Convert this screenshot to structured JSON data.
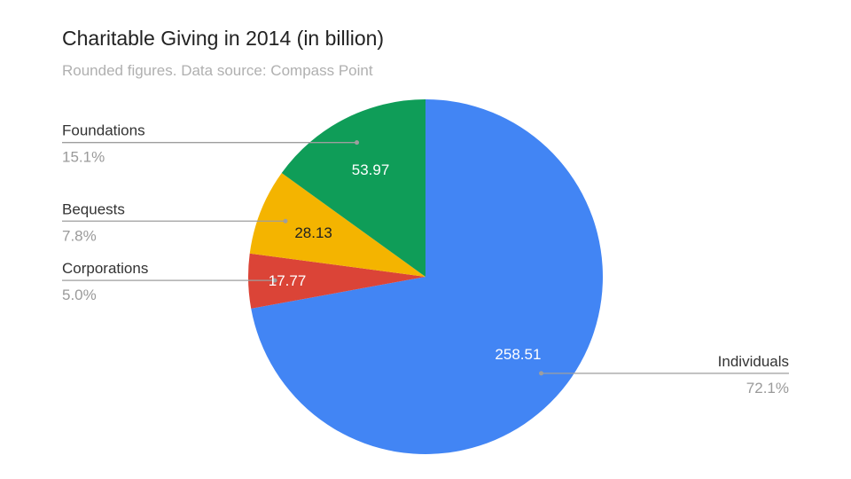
{
  "title": "Charitable Giving in 2014 (in billion)",
  "subtitle": "Rounded figures. Data source: Compass Point",
  "chart_data": {
    "type": "pie",
    "title": "Charitable Giving in 2014 (in billion)",
    "subtitle": "Rounded figures. Data source: Compass Point",
    "slices": [
      {
        "label": "Individuals",
        "value": 258.51,
        "value_label": "258.51",
        "percent_label": "72.1%",
        "color": "#4285F4",
        "label_color": "#ffffff"
      },
      {
        "label": "Corporations",
        "value": 17.77,
        "value_label": "17.77",
        "percent_label": "5.0%",
        "color": "#DB4437",
        "label_color": "#ffffff"
      },
      {
        "label": "Bequests",
        "value": 28.13,
        "value_label": "28.13",
        "percent_label": "7.8%",
        "color": "#F4B400",
        "label_color": "#222222"
      },
      {
        "label": "Foundations",
        "value": 53.97,
        "value_label": "53.97",
        "percent_label": "15.1%",
        "color": "#0F9D58",
        "label_color": "#ffffff"
      }
    ],
    "start_angle_deg": 0,
    "direction": "clockwise",
    "legend": "callouts"
  }
}
